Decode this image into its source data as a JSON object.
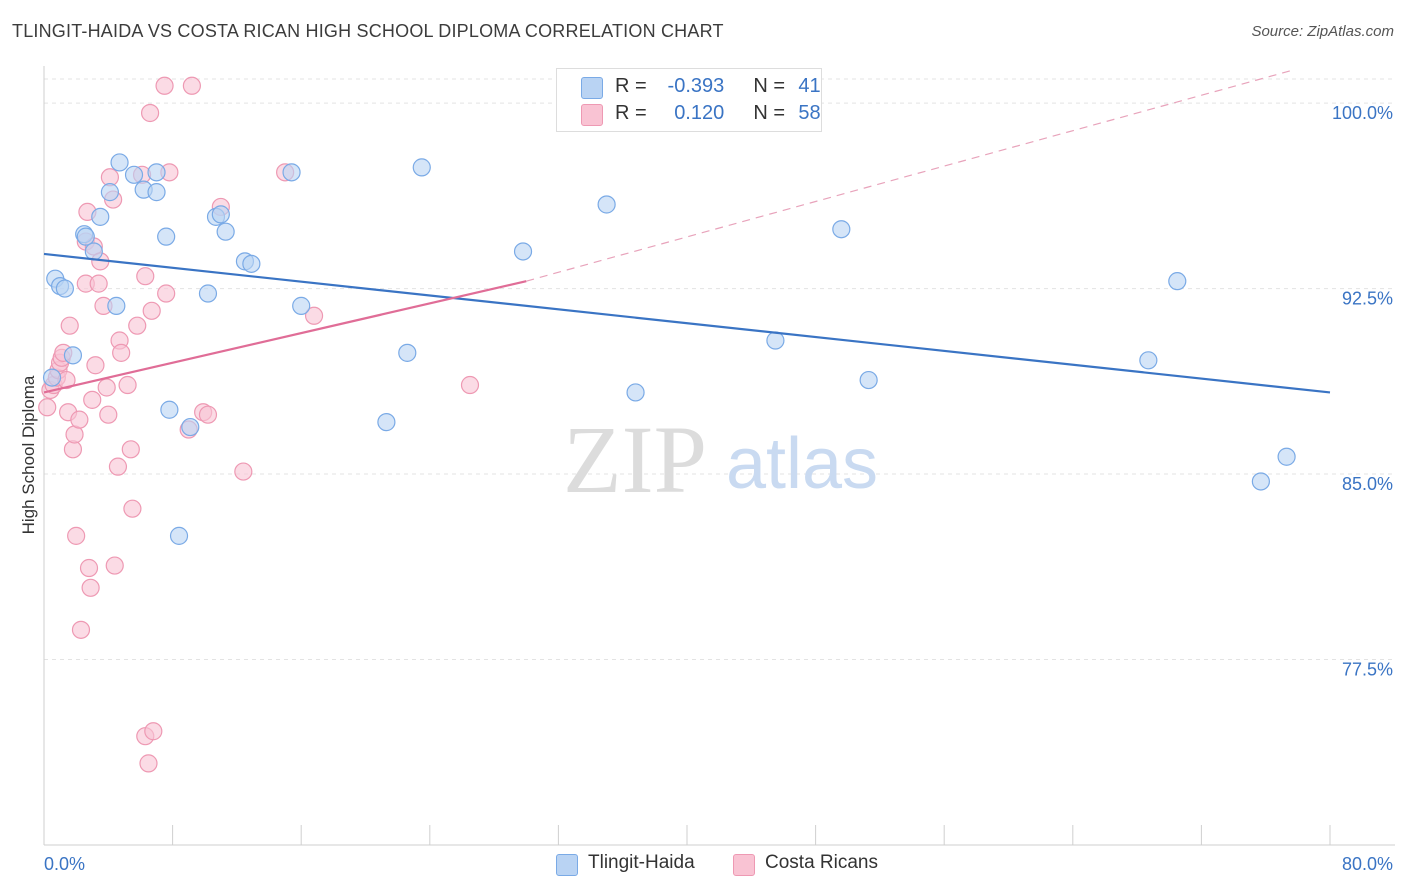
{
  "header": {
    "title": "TLINGIT-HAIDA VS COSTA RICAN HIGH SCHOOL DIPLOMA CORRELATION CHART",
    "source": "Source: ZipAtlas.com"
  },
  "watermark": {
    "zip": "ZIP",
    "atlas": "atlas"
  },
  "legend": {
    "r_label": "R =",
    "n_label": "N =",
    "series": [
      {
        "name": "Tlingit-Haida",
        "r": "-0.393",
        "n": "41",
        "fill": "#b9d3f3",
        "stroke": "#7aaae6"
      },
      {
        "name": "Costa Ricans",
        "r": "0.120",
        "n": "58",
        "fill": "#f9c3d3",
        "stroke": "#ee99b3"
      }
    ]
  },
  "chart_data": {
    "type": "scatter",
    "title": "TLINGIT-HAIDA VS COSTA RICAN HIGH SCHOOL DIPLOMA CORRELATION CHART",
    "xlabel": "",
    "ylabel": "High School Diploma",
    "xlim": [
      0,
      80
    ],
    "ylim": [
      70,
      101.5
    ],
    "x_tick_labels": [
      "0.0%",
      "80.0%"
    ],
    "y_ticks": [
      77.5,
      85.0,
      92.5,
      100.0
    ],
    "y_tick_labels": [
      "77.5%",
      "85.0%",
      "92.5%",
      "100.0%"
    ],
    "grid": true,
    "series": [
      {
        "name": "Tlingit-Haida",
        "color": "#3a74c4",
        "fill": "#b9d3f3",
        "stroke": "#7aaae6",
        "points": [
          [
            0.5,
            88.9
          ],
          [
            0.7,
            92.9
          ],
          [
            1.0,
            92.6
          ],
          [
            1.3,
            92.5
          ],
          [
            1.8,
            89.8
          ],
          [
            2.5,
            94.7
          ],
          [
            2.6,
            94.6
          ],
          [
            3.1,
            94.0
          ],
          [
            3.5,
            95.4
          ],
          [
            4.1,
            96.4
          ],
          [
            4.5,
            91.8
          ],
          [
            4.7,
            97.6
          ],
          [
            5.6,
            97.1
          ],
          [
            6.2,
            96.5
          ],
          [
            7.0,
            96.4
          ],
          [
            7.0,
            97.2
          ],
          [
            7.6,
            94.6
          ],
          [
            7.8,
            87.6
          ],
          [
            8.4,
            82.5
          ],
          [
            9.1,
            86.9
          ],
          [
            10.2,
            92.3
          ],
          [
            10.7,
            95.4
          ],
          [
            11.0,
            95.5
          ],
          [
            11.3,
            94.8
          ],
          [
            12.5,
            93.6
          ],
          [
            12.9,
            93.5
          ],
          [
            15.4,
            97.2
          ],
          [
            16.0,
            91.8
          ],
          [
            21.3,
            87.1
          ],
          [
            22.6,
            89.9
          ],
          [
            23.5,
            97.4
          ],
          [
            29.8,
            94.0
          ],
          [
            35.0,
            95.9
          ],
          [
            36.8,
            88.3
          ],
          [
            45.5,
            90.4
          ],
          [
            49.6,
            94.9
          ],
          [
            51.3,
            88.8
          ],
          [
            68.7,
            89.6
          ],
          [
            70.5,
            92.8
          ],
          [
            75.7,
            84.7
          ],
          [
            77.3,
            85.7
          ]
        ],
        "trendline": {
          "x": [
            0,
            80
          ],
          "y": [
            93.9,
            88.3
          ],
          "style": "solid"
        }
      },
      {
        "name": "Costa Ricans",
        "color": "#e06d97",
        "fill": "#f9c3d3",
        "stroke": "#ee99b3",
        "points": [
          [
            0.2,
            87.7
          ],
          [
            0.4,
            88.4
          ],
          [
            0.6,
            88.6
          ],
          [
            0.8,
            88.9
          ],
          [
            0.9,
            89.2
          ],
          [
            1.0,
            89.5
          ],
          [
            1.1,
            89.7
          ],
          [
            1.2,
            89.9
          ],
          [
            1.4,
            88.8
          ],
          [
            1.5,
            87.5
          ],
          [
            1.6,
            91.0
          ],
          [
            1.8,
            86.0
          ],
          [
            1.9,
            86.6
          ],
          [
            2.0,
            82.5
          ],
          [
            2.2,
            87.2
          ],
          [
            2.3,
            78.7
          ],
          [
            2.6,
            94.4
          ],
          [
            2.6,
            92.7
          ],
          [
            2.7,
            95.6
          ],
          [
            2.8,
            81.2
          ],
          [
            2.9,
            80.4
          ],
          [
            3.0,
            88.0
          ],
          [
            3.1,
            94.2
          ],
          [
            3.2,
            89.4
          ],
          [
            3.4,
            92.7
          ],
          [
            3.5,
            93.6
          ],
          [
            3.7,
            91.8
          ],
          [
            3.9,
            88.5
          ],
          [
            4.0,
            87.4
          ],
          [
            4.1,
            97.0
          ],
          [
            4.3,
            96.1
          ],
          [
            4.4,
            81.3
          ],
          [
            4.6,
            85.3
          ],
          [
            4.7,
            90.4
          ],
          [
            4.8,
            89.9
          ],
          [
            5.2,
            88.6
          ],
          [
            5.4,
            86.0
          ],
          [
            5.5,
            83.6
          ],
          [
            5.8,
            91.0
          ],
          [
            6.1,
            97.1
          ],
          [
            6.3,
            93.0
          ],
          [
            6.3,
            74.4
          ],
          [
            6.5,
            73.3
          ],
          [
            6.6,
            99.6
          ],
          [
            6.7,
            91.6
          ],
          [
            6.8,
            74.6
          ],
          [
            7.5,
            100.7
          ],
          [
            7.6,
            92.3
          ],
          [
            7.8,
            97.2
          ],
          [
            9.0,
            86.8
          ],
          [
            9.2,
            100.7
          ],
          [
            9.9,
            87.5
          ],
          [
            10.2,
            87.4
          ],
          [
            11.0,
            95.8
          ],
          [
            12.4,
            85.1
          ],
          [
            15.0,
            97.2
          ],
          [
            16.8,
            91.4
          ],
          [
            26.5,
            88.6
          ]
        ],
        "trendline": {
          "x": [
            0,
            30
          ],
          "y": [
            88.3,
            92.8
          ],
          "style": "solid",
          "extended": {
            "x": [
              30,
              77.5
            ],
            "y": [
              92.8,
              101.3
            ],
            "style": "dashed"
          }
        }
      }
    ]
  }
}
